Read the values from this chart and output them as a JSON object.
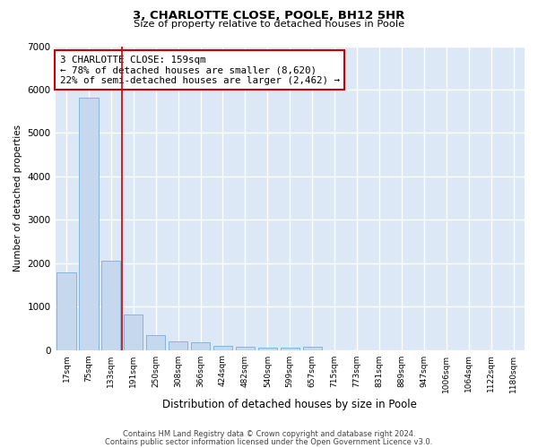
{
  "title1": "3, CHARLOTTE CLOSE, POOLE, BH12 5HR",
  "title2": "Size of property relative to detached houses in Poole",
  "xlabel": "Distribution of detached houses by size in Poole",
  "ylabel": "Number of detached properties",
  "categories": [
    "17sqm",
    "75sqm",
    "133sqm",
    "191sqm",
    "250sqm",
    "308sqm",
    "366sqm",
    "424sqm",
    "482sqm",
    "540sqm",
    "599sqm",
    "657sqm",
    "715sqm",
    "773sqm",
    "831sqm",
    "889sqm",
    "947sqm",
    "1006sqm",
    "1064sqm",
    "1122sqm",
    "1180sqm"
  ],
  "values": [
    1780,
    5820,
    2060,
    820,
    340,
    200,
    170,
    100,
    80,
    55,
    45,
    80,
    0,
    0,
    0,
    0,
    0,
    0,
    0,
    0,
    0
  ],
  "bar_color": "#c5d8ee",
  "bar_edge_color": "#7aaed4",
  "vline_color": "#cc0000",
  "annotation_text": "3 CHARLOTTE CLOSE: 159sqm\n← 78% of detached houses are smaller (8,620)\n22% of semi-detached houses are larger (2,462) →",
  "annotation_box_color": "#ffffff",
  "annotation_box_edge": "#cc0000",
  "ylim": [
    0,
    7000
  ],
  "yticks": [
    0,
    1000,
    2000,
    3000,
    4000,
    5000,
    6000,
    7000
  ],
  "background_color": "#dce8f5",
  "grid_color": "#ffffff",
  "footer1": "Contains HM Land Registry data © Crown copyright and database right 2024.",
  "footer2": "Contains public sector information licensed under the Open Government Licence v3.0."
}
